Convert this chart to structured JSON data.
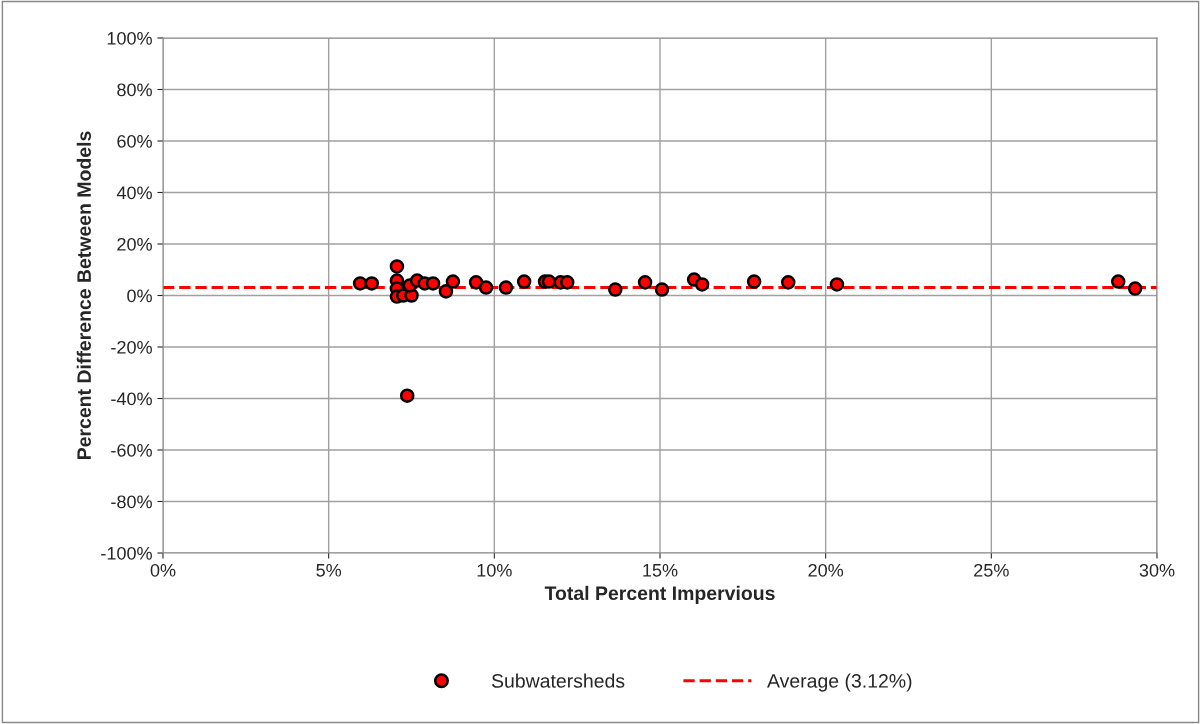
{
  "chart_data": {
    "type": "scatter",
    "xlabel": "Total Percent Impervious",
    "ylabel": "Percent Difference Between Models",
    "x": [
      5.95,
      6.3,
      7.06,
      7.06,
      7.06,
      7.06,
      7.25,
      7.5,
      7.45,
      7.37,
      7.67,
      7.9,
      8.15,
      8.54,
      8.75,
      9.45,
      9.75,
      10.35,
      10.9,
      11.53,
      11.65,
      12.0,
      12.2,
      13.65,
      14.55,
      15.06,
      16.03,
      16.27,
      17.84,
      18.87,
      20.34,
      28.83,
      29.34
    ],
    "series": [
      {
        "name": "Subwatersheds",
        "color": "#ff0000",
        "values": [
          4.7,
          4.7,
          11.3,
          5.8,
          2.7,
          -0.4,
          0,
          0,
          3.9,
          -38.9,
          5.8,
          4.7,
          4.7,
          1.6,
          5.4,
          5.1,
          3.1,
          3.1,
          5.4,
          5.4,
          5.4,
          5.1,
          5.1,
          2.3,
          5.1,
          2.3,
          6.2,
          4.3,
          5.4,
          5.1,
          4.3,
          5.4,
          2.7
        ]
      }
    ],
    "marker": "circle",
    "ref_lines": [
      {
        "axis": "y",
        "value": 3.12,
        "label": "Average (3.12%)",
        "color": "#ff0000",
        "line_style": "dashed"
      }
    ],
    "xlim": [
      0,
      30
    ],
    "ylim": [
      -100,
      100
    ],
    "xticks": [
      {
        "value": 0,
        "label": "0%"
      },
      {
        "value": 5,
        "label": "5%"
      },
      {
        "value": 10,
        "label": "10%"
      },
      {
        "value": 15,
        "label": "15%"
      },
      {
        "value": 20,
        "label": "20%"
      },
      {
        "value": 25,
        "label": "25%"
      },
      {
        "value": 30,
        "label": "30%"
      }
    ],
    "yticks": [
      {
        "value": -100,
        "label": "-100%"
      },
      {
        "value": -80,
        "label": "-80%"
      },
      {
        "value": -60,
        "label": "-60%"
      },
      {
        "value": -40,
        "label": "-40%"
      },
      {
        "value": -20,
        "label": "-20%"
      },
      {
        "value": 0,
        "label": "0%"
      },
      {
        "value": 20,
        "label": "20%"
      },
      {
        "value": 40,
        "label": "40%"
      },
      {
        "value": 60,
        "label": "60%"
      },
      {
        "value": 80,
        "label": "80%"
      },
      {
        "value": 100,
        "label": "100%"
      }
    ],
    "grid": true,
    "legend": "bottom"
  }
}
